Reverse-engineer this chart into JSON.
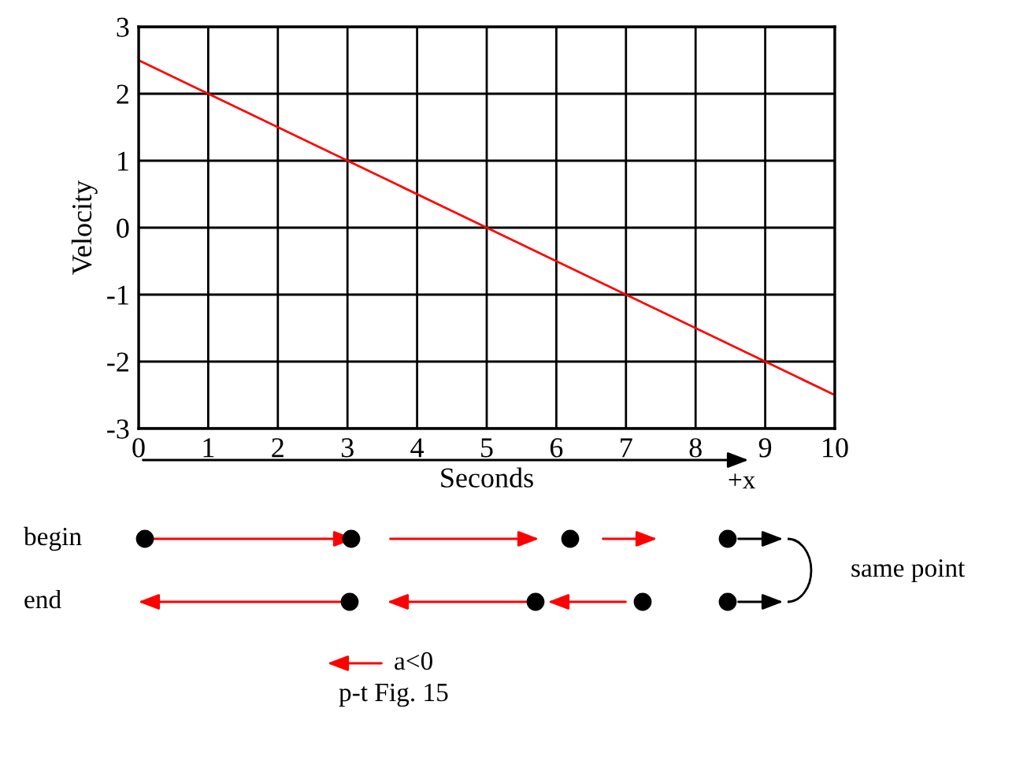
{
  "chart_data": {
    "type": "line",
    "xlabel": "Seconds",
    "ylabel": "Velocity",
    "x": [
      0,
      10
    ],
    "series": [
      {
        "color": "#ff0000",
        "values": [
          2.5,
          -2.5
        ]
      }
    ],
    "xlim": [
      0,
      10
    ],
    "ylim": [
      -3,
      3
    ],
    "xticks": [
      0,
      1,
      2,
      3,
      4,
      5,
      6,
      7,
      8,
      9,
      10
    ],
    "yticks": [
      -3,
      -2,
      -1,
      0,
      1,
      2,
      3
    ],
    "grid": true,
    "annotations": [
      "+x",
      "begin",
      "end",
      "same point",
      "a<0",
      "p-t Fig. 15"
    ]
  }
}
